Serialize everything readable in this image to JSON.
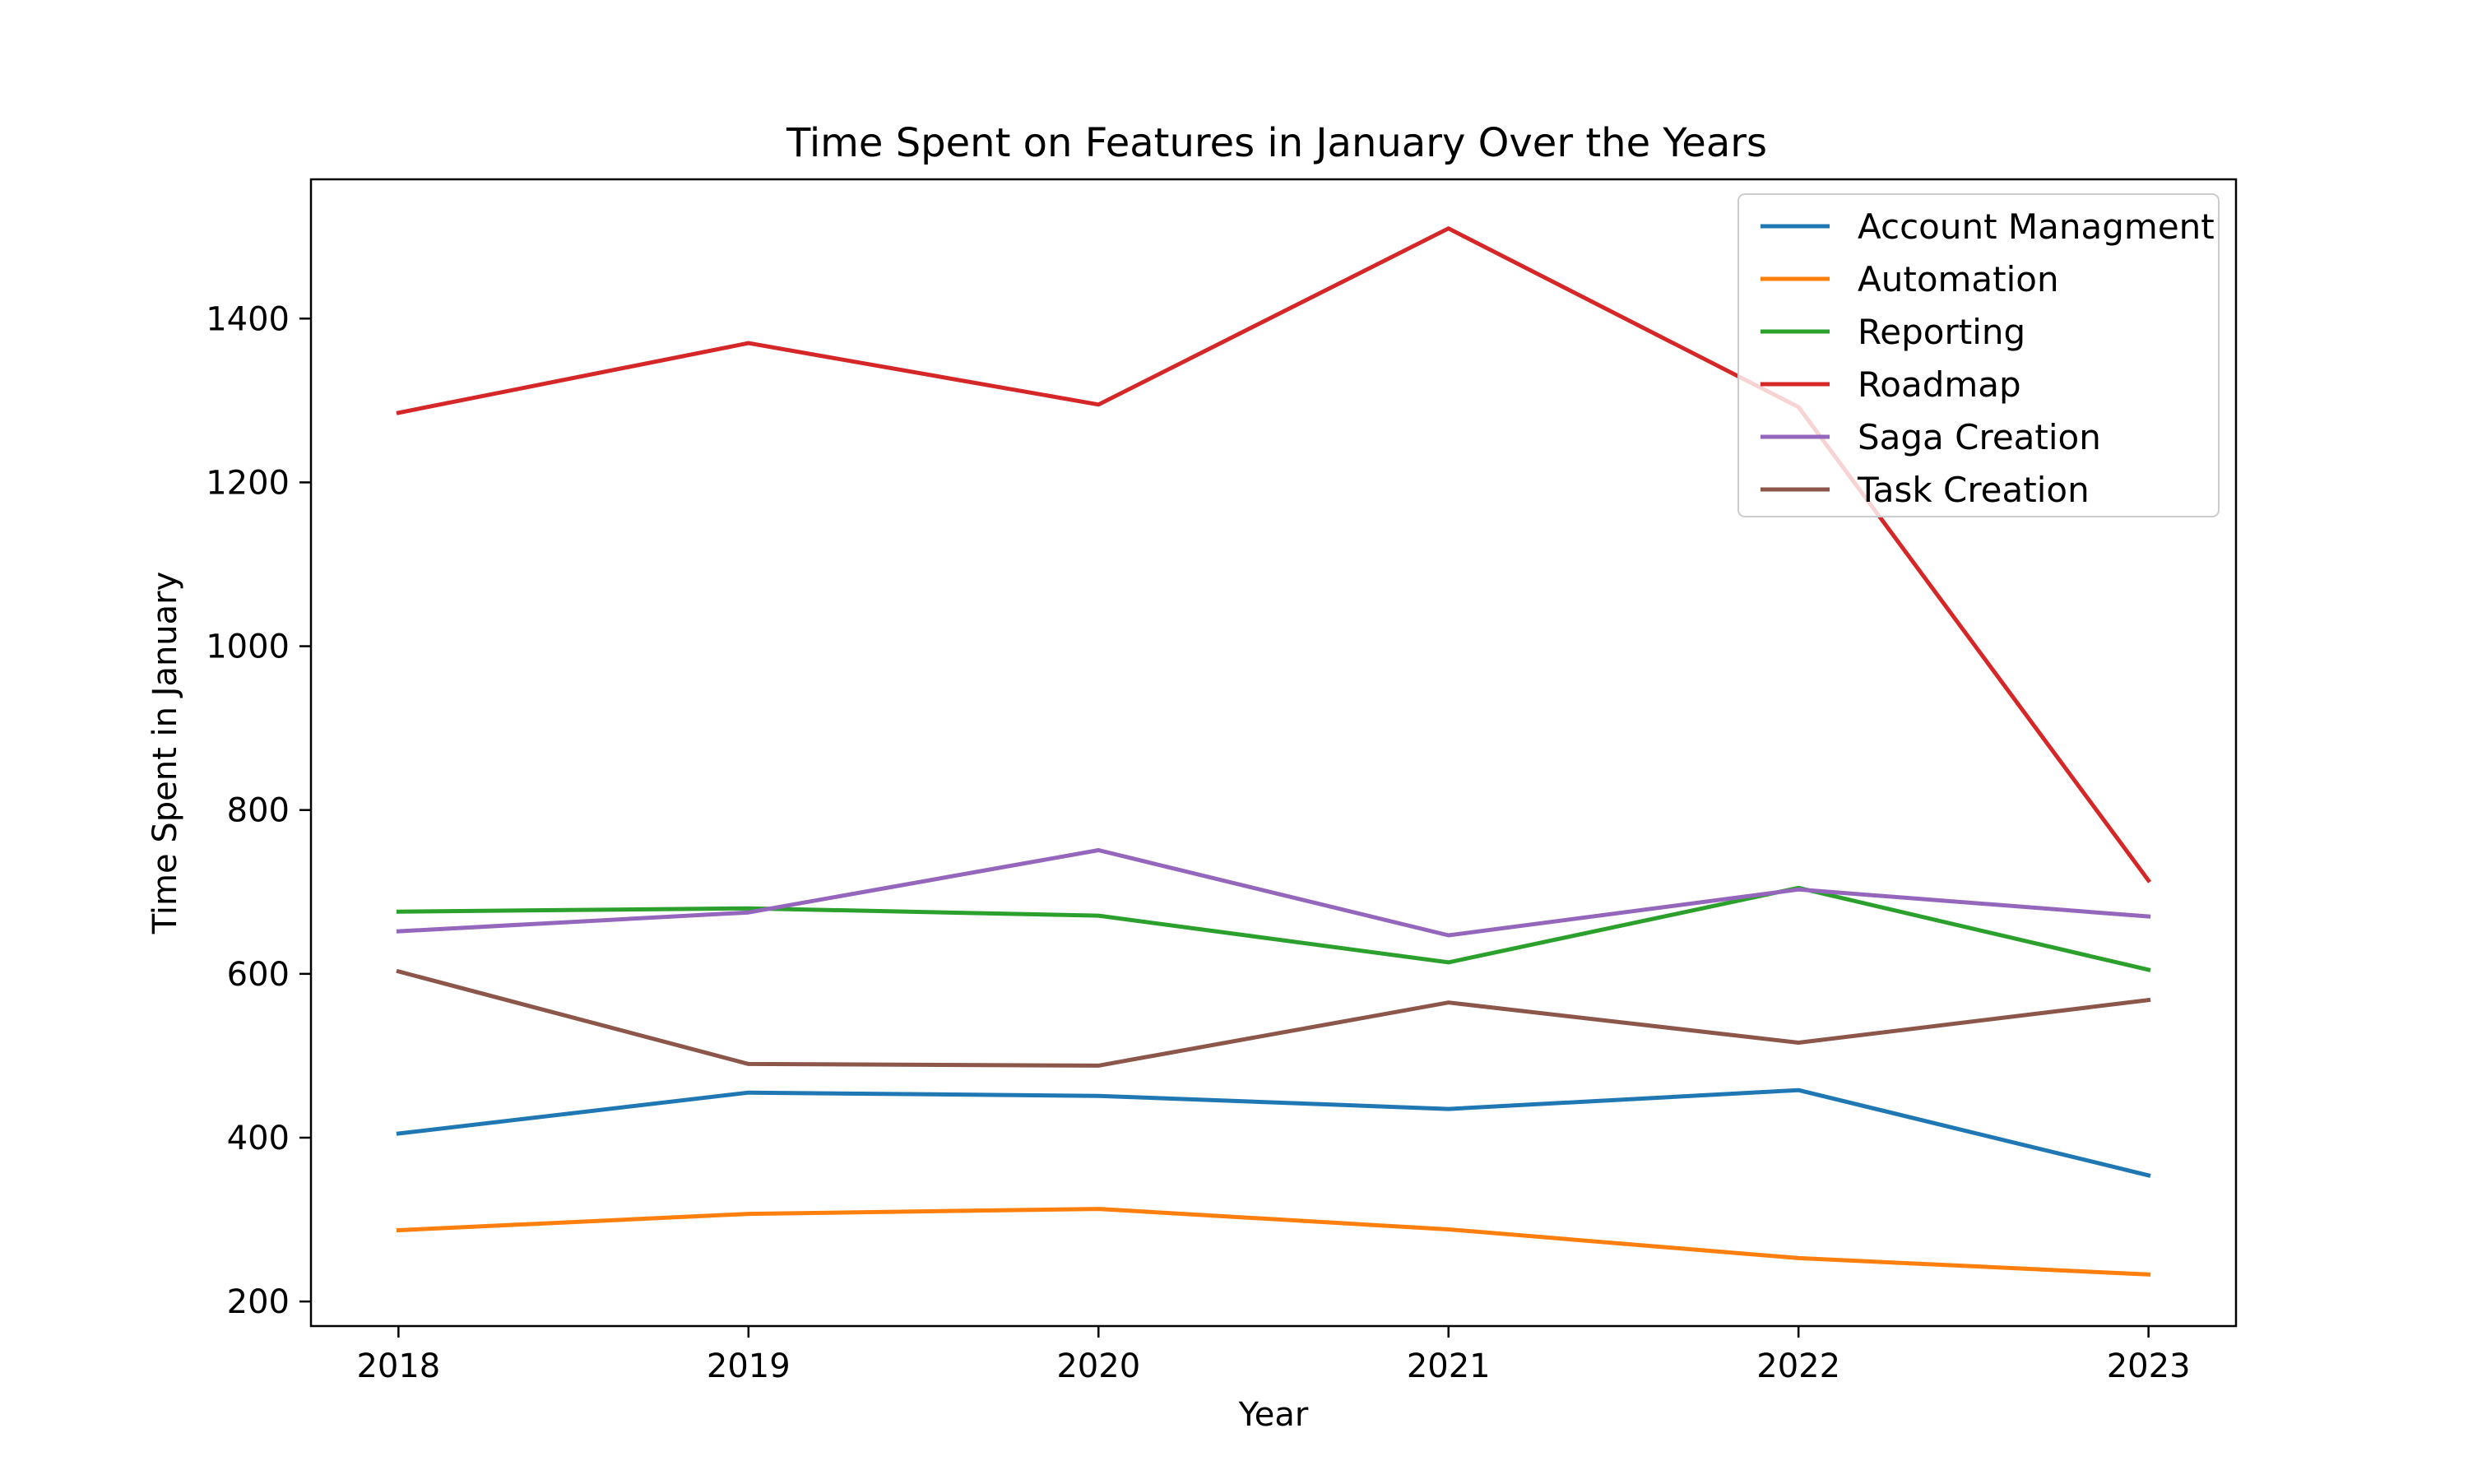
{
  "chart_data": {
    "type": "line",
    "title": "Time Spent on Features in January Over the Years",
    "xlabel": "Year",
    "ylabel": "Time Spent in January",
    "x": [
      "2018",
      "2019",
      "2020",
      "2021",
      "2022",
      "2023"
    ],
    "xlim": [
      2017.75,
      2023.25
    ],
    "ylim": [
      170,
      1570
    ],
    "yticks": [
      200,
      400,
      600,
      800,
      1000,
      1200,
      1400
    ],
    "grid": false,
    "legend_position": "top-right",
    "series": [
      {
        "name": "Account Managment",
        "color": "#1f77b4",
        "values": [
          405,
          455,
          451,
          435,
          458,
          354
        ]
      },
      {
        "name": "Automation",
        "color": "#ff7f0e",
        "values": [
          287,
          307,
          313,
          288,
          253,
          233
        ]
      },
      {
        "name": "Reporting",
        "color": "#2ca02c",
        "values": [
          676,
          680,
          671,
          614,
          705,
          605
        ]
      },
      {
        "name": "Roadmap",
        "color": "#d62728",
        "values": [
          1285,
          1370,
          1295,
          1510,
          1292,
          714
        ]
      },
      {
        "name": "Saga Creation",
        "color": "#9467bd",
        "values": [
          652,
          675,
          751,
          647,
          703,
          670
        ]
      },
      {
        "name": "Task Creation",
        "color": "#8c564b",
        "values": [
          603,
          490,
          488,
          565,
          516,
          568
        ]
      }
    ]
  }
}
